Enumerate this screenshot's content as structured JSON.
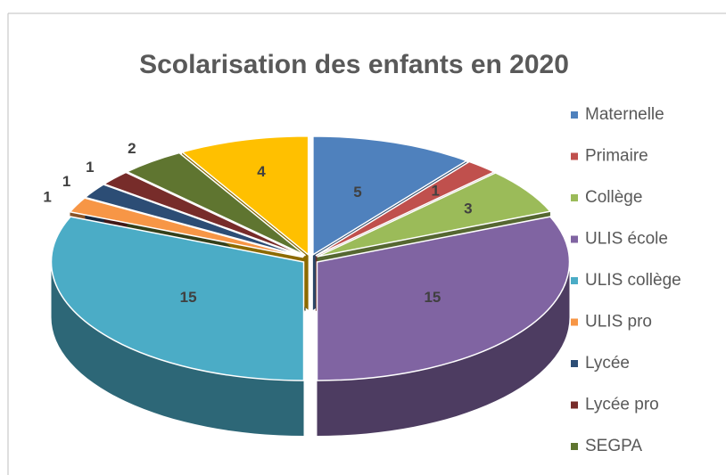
{
  "chart_data": {
    "type": "pie3d",
    "title": "Scolarisation des enfants en 2020",
    "categories": [
      "Maternelle",
      "Primaire",
      "Collège",
      "ULIS école",
      "ULIS collège",
      "ULIS pro",
      "Lycée",
      "Lycée pro",
      "SEGPA",
      null
    ],
    "values": [
      5,
      1,
      3,
      15,
      15,
      1,
      1,
      1,
      2,
      4
    ],
    "colors": [
      "#4f81bd",
      "#c0504d",
      "#9bbb59",
      "#8064a2",
      "#4bacc6",
      "#f79646",
      "#2c4d75",
      "#772c2a",
      "#5f7530",
      "#ffc000"
    ],
    "legend": "right"
  }
}
